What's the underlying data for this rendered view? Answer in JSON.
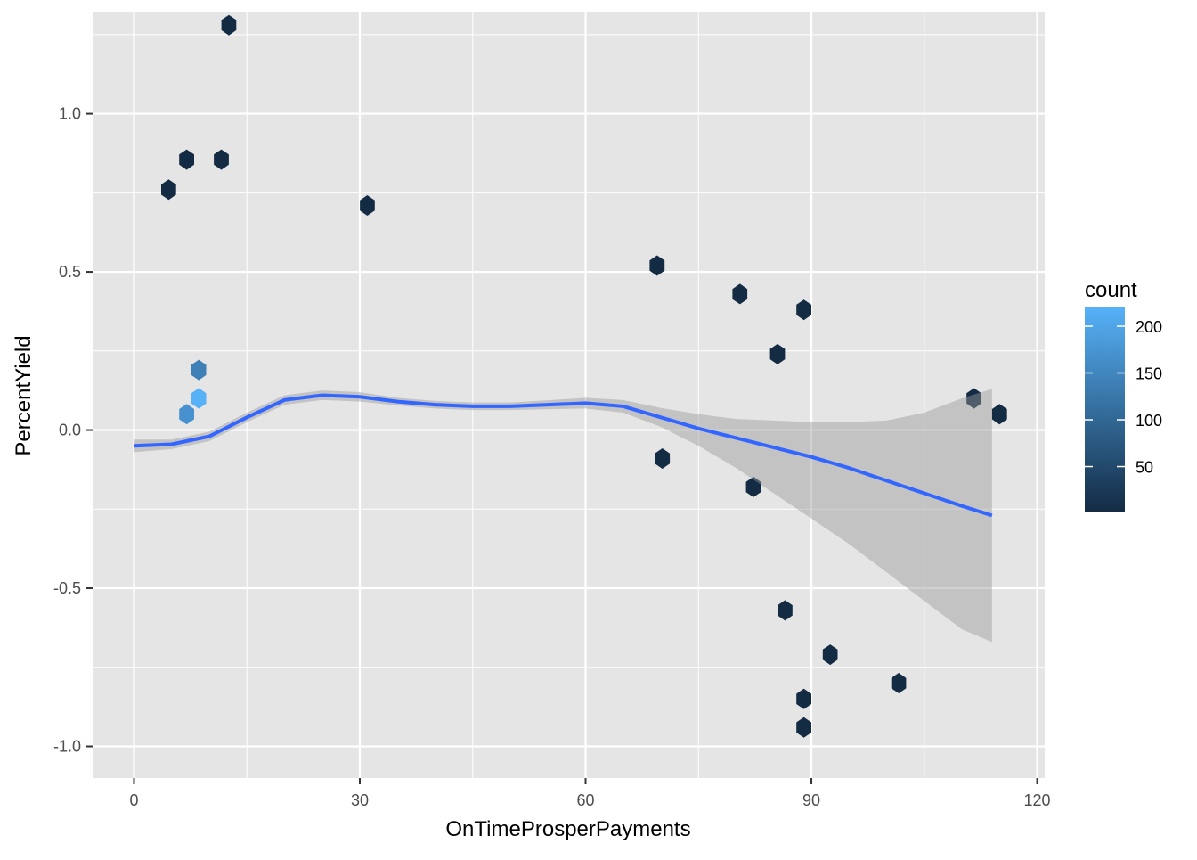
{
  "chart_data": {
    "type": "hexbin",
    "title": "",
    "xlabel": "OnTimeProsperPayments",
    "ylabel": "PercentYield",
    "xlim": [
      -5.5,
      121
    ],
    "ylim": [
      -1.1,
      1.32
    ],
    "x_ticks": [
      0,
      30,
      60,
      90,
      120
    ],
    "x_tick_labels": [
      "0",
      "30",
      "60",
      "90",
      "120"
    ],
    "y_ticks": [
      -1.0,
      -0.5,
      0.0,
      0.5,
      1.0
    ],
    "y_tick_labels": [
      "-1.0",
      "-0.5",
      "0.0",
      "0.5",
      "1.0"
    ],
    "grid": true,
    "panel_background": "#e5e5e5",
    "grid_color": "#ffffff",
    "hex_color_low": "#132b43",
    "hex_color_high": "#56b1f7",
    "legend": {
      "title": "count",
      "position": "right",
      "min": 1,
      "max": 220,
      "breaks": [
        50,
        100,
        150,
        200
      ],
      "break_labels": [
        "50",
        "100",
        "150",
        "200"
      ]
    },
    "smooth_line": {
      "color": "#3366ff",
      "band_color": "#999999",
      "x": [
        0,
        5,
        10,
        15,
        20,
        25,
        30,
        35,
        40,
        45,
        50,
        55,
        60,
        65,
        70,
        75,
        80,
        85,
        90,
        95,
        100,
        105,
        110,
        114
      ],
      "y": [
        -0.05,
        -0.045,
        -0.02,
        0.04,
        0.095,
        0.11,
        0.105,
        0.09,
        0.08,
        0.075,
        0.075,
        0.08,
        0.085,
        0.075,
        0.04,
        0.005,
        -0.025,
        -0.055,
        -0.085,
        -0.12,
        -0.16,
        -0.2,
        -0.24,
        -0.27
      ],
      "lower": [
        -0.07,
        -0.06,
        -0.035,
        0.025,
        0.08,
        0.095,
        0.09,
        0.078,
        0.068,
        0.063,
        0.063,
        0.066,
        0.068,
        0.055,
        0.01,
        -0.05,
        -0.12,
        -0.2,
        -0.28,
        -0.36,
        -0.45,
        -0.54,
        -0.63,
        -0.67
      ],
      "upper": [
        -0.03,
        -0.03,
        -0.005,
        0.055,
        0.11,
        0.125,
        0.12,
        0.102,
        0.092,
        0.087,
        0.087,
        0.094,
        0.102,
        0.095,
        0.07,
        0.05,
        0.035,
        0.03,
        0.025,
        0.025,
        0.03,
        0.055,
        0.1,
        0.13
      ]
    },
    "hexbins": [
      {
        "x": 12.6,
        "y": 1.28,
        "count": 1
      },
      {
        "x": 7,
        "y": 0.855,
        "count": 1
      },
      {
        "x": 11.6,
        "y": 0.855,
        "count": 1
      },
      {
        "x": 4.6,
        "y": 0.76,
        "count": 1
      },
      {
        "x": 31,
        "y": 0.71,
        "count": 1
      },
      {
        "x": 101.6,
        "y": -0.8,
        "count": 1
      },
      {
        "x": 111.6,
        "y": 0.1,
        "count": 1
      },
      {
        "x": 115,
        "y": 0.05,
        "count": 1
      },
      {
        "x": 92.5,
        "y": -0.71,
        "count": 1
      },
      {
        "x": 89,
        "y": 0.38,
        "count": 1
      },
      {
        "x": 89,
        "y": -0.85,
        "count": 1
      },
      {
        "x": 89,
        "y": -0.94,
        "count": 1
      },
      {
        "x": 85.5,
        "y": 0.24,
        "count": 1
      },
      {
        "x": 86.5,
        "y": -0.57,
        "count": 1
      },
      {
        "x": 82.3,
        "y": -0.18,
        "count": 1
      },
      {
        "x": 80.5,
        "y": 0.43,
        "count": 1
      },
      {
        "x": 69.5,
        "y": 0.52,
        "count": 1
      },
      {
        "x": 70.2,
        "y": -0.09,
        "count": 1
      },
      {
        "x": 8.6,
        "y": 0.1,
        "count": 220
      },
      {
        "x": 8.6,
        "y": 0.19,
        "count": 140
      },
      {
        "x": 7.0,
        "y": 0.05,
        "count": 170
      }
    ]
  }
}
